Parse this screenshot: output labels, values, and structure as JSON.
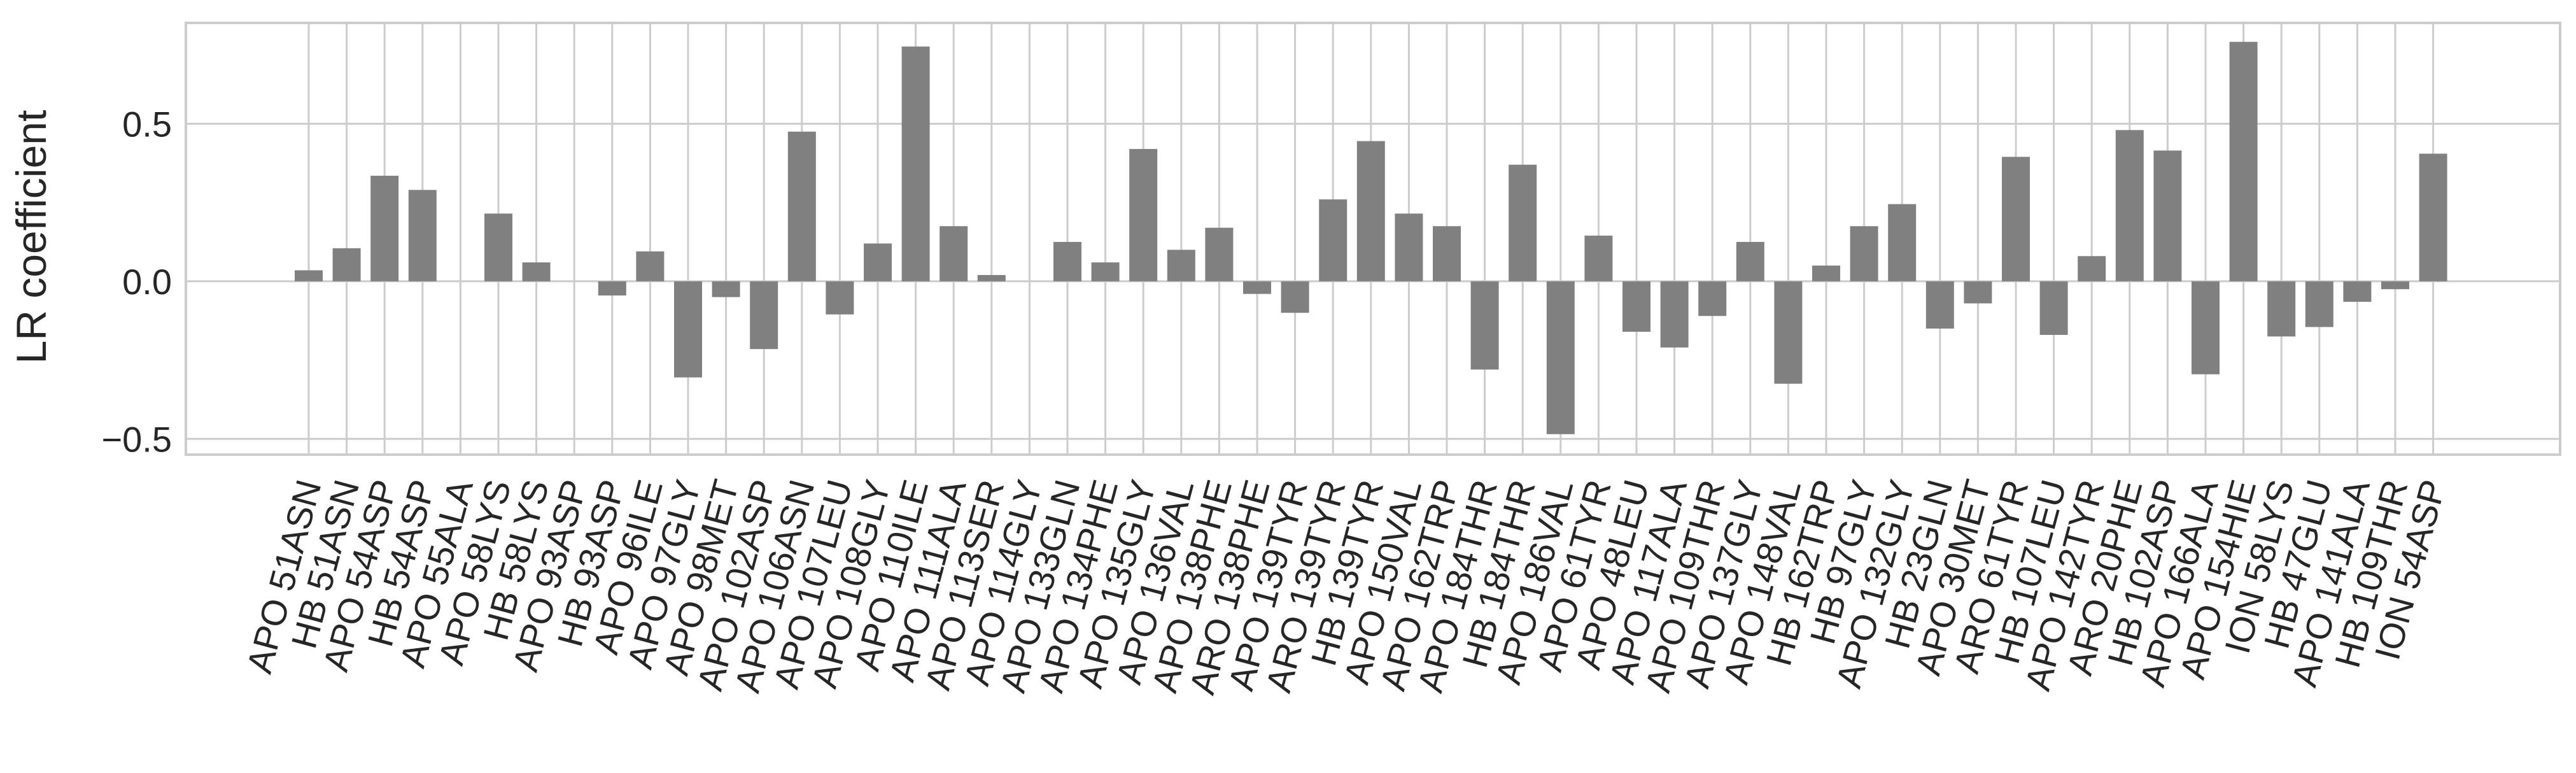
{
  "chart_data": {
    "type": "bar",
    "ylabel": "LR coefficient",
    "xlabel": "",
    "ylim": [
      -0.55,
      0.82
    ],
    "yticks": [
      -0.5,
      0.0,
      0.5
    ],
    "ytick_labels": [
      "−0.5",
      "0.0",
      "0.5"
    ],
    "grid": true,
    "bar_color": "#808080",
    "grid_color": "#cccccc",
    "categories": [
      "APO 51ASN",
      "HB 51ASN",
      "APO 54ASP",
      "HB 54ASP",
      "APO 55ALA",
      "APO 58LYS",
      "HB 58LYS",
      "APO 93ASP",
      "HB 93ASP",
      "APO 96ILE",
      "APO 97GLY",
      "APO 98MET",
      "APO 102ASP",
      "APO 106ASN",
      "APO 107LEU",
      "APO 108GLY",
      "APO 110ILE",
      "APO 111ALA",
      "APO 113SER",
      "APO 114GLY",
      "APO 133GLN",
      "APO 134PHE",
      "APO 135GLY",
      "APO 136VAL",
      "APO 138PHE",
      "ARO 138PHE",
      "APO 139TYR",
      "ARO 139TYR",
      "HB 139TYR",
      "APO 150VAL",
      "APO 162TRP",
      "APO 184THR",
      "HB 184THR",
      "APO 186VAL",
      "APO 61TYR",
      "APO 48LEU",
      "APO 117ALA",
      "APO 109THR",
      "APO 137GLY",
      "APO 148VAL",
      "HB 162TRP",
      "HB 97GLY",
      "APO 132GLY",
      "HB 23GLN",
      "APO 30MET",
      "ARO 61TYR",
      "HB 107LEU",
      "APO 142TYR",
      "ARO 20PHE",
      "HB 102ASP",
      "APO 166ALA",
      "APO 154HIE",
      "ION 58LYS",
      "HB 47GLU",
      "APO 141ALA",
      "HB 109THR",
      "ION 54ASP"
    ],
    "values": [
      0.035,
      0.105,
      0.335,
      0.29,
      0.0,
      0.215,
      0.06,
      0.0,
      -0.045,
      0.095,
      -0.305,
      -0.05,
      -0.215,
      0.475,
      -0.105,
      0.12,
      0.745,
      0.175,
      0.02,
      0.0,
      0.125,
      0.06,
      0.42,
      0.1,
      0.17,
      -0.04,
      -0.1,
      0.26,
      0.445,
      0.215,
      0.175,
      -0.28,
      0.37,
      -0.485,
      0.145,
      -0.16,
      -0.21,
      -0.11,
      0.125,
      -0.325,
      0.05,
      0.175,
      0.245,
      -0.15,
      -0.07,
      0.395,
      -0.17,
      0.08,
      0.48,
      0.415,
      -0.295,
      0.76,
      -0.175,
      -0.145,
      -0.065,
      -0.025,
      0.405
    ]
  }
}
